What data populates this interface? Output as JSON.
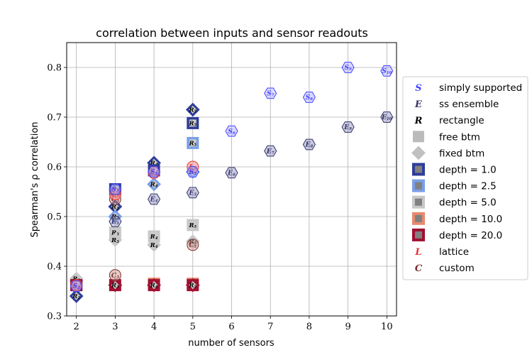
{
  "chart_data": {
    "type": "scatter",
    "title": "correlation between inputs and sensor readouts",
    "xlabel": "number of sensors",
    "ylabel": "Spearman's ρ correlation",
    "xlim": [
      1.75,
      10.25
    ],
    "ylim": [
      0.3,
      0.85
    ],
    "xticks": [
      2,
      3,
      4,
      5,
      6,
      7,
      8,
      9,
      10
    ],
    "yticks": [
      0.3,
      0.4,
      0.5,
      0.6,
      0.7,
      0.8
    ],
    "grid": true,
    "legend_position": "right",
    "colors": {
      "simply_supported": "#4444ff",
      "ss_ensemble": "#333366",
      "rectangle": "#000000",
      "free_btm": "#bbbbbb",
      "fixed_btm": "#c0c0c0",
      "depth_1": "#2e3d99",
      "depth_2_5": "#7a9fe8",
      "depth_5": "#c8c8c8",
      "depth_10": "#e68a6e",
      "depth_20": "#a01030",
      "lattice": "#e63232",
      "custom": "#7a3030"
    },
    "legend": [
      {
        "label": "simply supported",
        "glyph": "S",
        "kind": "letter",
        "color": "#4444ff"
      },
      {
        "label": "ss ensemble",
        "glyph": "E",
        "kind": "letter",
        "color": "#333366"
      },
      {
        "label": "rectangle",
        "glyph": "R",
        "kind": "letter",
        "color": "#000000"
      },
      {
        "label": "free btm",
        "kind": "square",
        "color": "#bbbbbb"
      },
      {
        "label": "fixed btm",
        "kind": "diamond",
        "color": "#c0c0c0"
      },
      {
        "label": "depth = 1.0",
        "kind": "depth",
        "color": "#2e3d99"
      },
      {
        "label": "depth = 2.5",
        "kind": "depth",
        "color": "#7a9fe8"
      },
      {
        "label": "depth = 5.0",
        "kind": "depth",
        "color": "#c8c8c8"
      },
      {
        "label": "depth = 10.0",
        "kind": "depth",
        "color": "#e68a6e"
      },
      {
        "label": "depth = 20.0",
        "kind": "depth",
        "color": "#a01030"
      },
      {
        "label": "lattice",
        "glyph": "L",
        "kind": "letter",
        "color": "#e63232"
      },
      {
        "label": "custom",
        "glyph": "C",
        "kind": "letter",
        "color": "#7a3030"
      }
    ],
    "series": [
      {
        "name": "simply supported",
        "points": [
          {
            "x": 2,
            "y": 0.36,
            "glyph": "S2"
          },
          {
            "x": 3,
            "y": 0.555,
            "glyph": "S3"
          },
          {
            "x": 4,
            "y": 0.59,
            "glyph": "S4"
          },
          {
            "x": 5,
            "y": 0.59,
            "glyph": "S5"
          },
          {
            "x": 6,
            "y": 0.672,
            "glyph": "S6"
          },
          {
            "x": 7,
            "y": 0.748,
            "glyph": "S7"
          },
          {
            "x": 8,
            "y": 0.74,
            "glyph": "S8"
          },
          {
            "x": 9,
            "y": 0.8,
            "glyph": "S9"
          },
          {
            "x": 10,
            "y": 0.793,
            "glyph": "S10"
          }
        ]
      },
      {
        "name": "ss ensemble",
        "points": [
          {
            "x": 3,
            "y": 0.49,
            "glyph": "E3"
          },
          {
            "x": 4,
            "y": 0.535,
            "glyph": "E4"
          },
          {
            "x": 5,
            "y": 0.548,
            "glyph": "E5"
          },
          {
            "x": 6,
            "y": 0.588,
            "glyph": "E6"
          },
          {
            "x": 7,
            "y": 0.632,
            "glyph": "E7"
          },
          {
            "x": 8,
            "y": 0.645,
            "glyph": "E8"
          },
          {
            "x": 9,
            "y": 0.68,
            "glyph": "E9"
          },
          {
            "x": 10,
            "y": 0.7,
            "glyph": "E10"
          }
        ]
      },
      {
        "name": "rectangle",
        "points": [
          {
            "x": 2,
            "y": 0.34,
            "shape": "diamond",
            "depth": "depth = 1.0",
            "glyph": "R2"
          },
          {
            "x": 2,
            "y": 0.37,
            "shape": "diamond",
            "depth": "depth = 2.5",
            "glyph": "R2"
          },
          {
            "x": 2,
            "y": 0.375,
            "shape": "diamond",
            "depth": "depth = 5.0",
            "glyph": "R2"
          },
          {
            "x": 2,
            "y": 0.362,
            "shape": "square",
            "depth": "depth = 1.0",
            "glyph": "R2"
          },
          {
            "x": 2,
            "y": 0.362,
            "shape": "square",
            "depth": "depth = 20.0",
            "glyph": "R2"
          },
          {
            "x": 3,
            "y": 0.555,
            "shape": "square",
            "depth": "depth = 1.0",
            "glyph": "R3"
          },
          {
            "x": 3,
            "y": 0.52,
            "shape": "diamond",
            "depth": "depth = 1.0",
            "glyph": "R3"
          },
          {
            "x": 3,
            "y": 0.5,
            "shape": "diamond",
            "depth": "depth = 2.5",
            "glyph": "R3"
          },
          {
            "x": 3,
            "y": 0.468,
            "shape": "square",
            "depth": "depth = 5.0",
            "glyph": "R3"
          },
          {
            "x": 3,
            "y": 0.453,
            "shape": "diamond",
            "depth": "depth = 5.0",
            "glyph": "R3"
          },
          {
            "x": 3,
            "y": 0.362,
            "shape": "square",
            "depth": "depth = 20.0",
            "glyph": "R3"
          },
          {
            "x": 3,
            "y": 0.362,
            "shape": "diamond",
            "depth": "depth = 20.0",
            "glyph": "R3"
          },
          {
            "x": 4,
            "y": 0.608,
            "shape": "diamond",
            "depth": "depth = 1.0",
            "glyph": "R4"
          },
          {
            "x": 4,
            "y": 0.593,
            "shape": "square",
            "depth": "depth = 1.0",
            "glyph": "R4"
          },
          {
            "x": 4,
            "y": 0.565,
            "shape": "diamond",
            "depth": "depth = 2.5",
            "glyph": "R4"
          },
          {
            "x": 4,
            "y": 0.46,
            "shape": "square",
            "depth": "depth = 5.0",
            "glyph": "R4"
          },
          {
            "x": 4,
            "y": 0.443,
            "shape": "diamond",
            "depth": "depth = 5.0",
            "glyph": "R4"
          },
          {
            "x": 4,
            "y": 0.365,
            "shape": "square",
            "depth": "depth = 10.0",
            "glyph": "R4"
          },
          {
            "x": 4,
            "y": 0.362,
            "shape": "square",
            "depth": "depth = 20.0",
            "glyph": "R4"
          },
          {
            "x": 4,
            "y": 0.362,
            "shape": "diamond",
            "depth": "depth = 20.0",
            "glyph": "R4"
          },
          {
            "x": 5,
            "y": 0.715,
            "shape": "diamond",
            "depth": "depth = 1.0",
            "glyph": "R5"
          },
          {
            "x": 5,
            "y": 0.688,
            "shape": "square",
            "depth": "depth = 1.0",
            "glyph": "R5"
          },
          {
            "x": 5,
            "y": 0.648,
            "shape": "square",
            "depth": "depth = 2.5",
            "glyph": "R5"
          },
          {
            "x": 5,
            "y": 0.59,
            "shape": "diamond",
            "depth": "depth = 2.5",
            "glyph": "R5"
          },
          {
            "x": 5,
            "y": 0.483,
            "shape": "square",
            "depth": "depth = 5.0",
            "glyph": "R5"
          },
          {
            "x": 5,
            "y": 0.45,
            "shape": "diamond",
            "depth": "depth = 5.0",
            "glyph": "R5"
          },
          {
            "x": 5,
            "y": 0.365,
            "shape": "square",
            "depth": "depth = 10.0",
            "glyph": "R5"
          },
          {
            "x": 5,
            "y": 0.362,
            "shape": "square",
            "depth": "depth = 20.0",
            "glyph": "R5"
          },
          {
            "x": 5,
            "y": 0.362,
            "shape": "diamond",
            "depth": "depth = 20.0",
            "glyph": "R5"
          }
        ]
      },
      {
        "name": "lattice",
        "points": [
          {
            "x": 2,
            "y": 0.362,
            "glyph": "L2"
          },
          {
            "x": 3,
            "y": 0.545,
            "glyph": "L3"
          },
          {
            "x": 4,
            "y": 0.588,
            "glyph": "L4"
          },
          {
            "x": 5,
            "y": 0.6,
            "glyph": "L5"
          }
        ]
      },
      {
        "name": "custom",
        "points": [
          {
            "x": 3,
            "y": 0.535,
            "glyph": "C3"
          },
          {
            "x": 3,
            "y": 0.382,
            "glyph": "C3"
          },
          {
            "x": 5,
            "y": 0.443,
            "glyph": "C5"
          }
        ]
      }
    ]
  }
}
